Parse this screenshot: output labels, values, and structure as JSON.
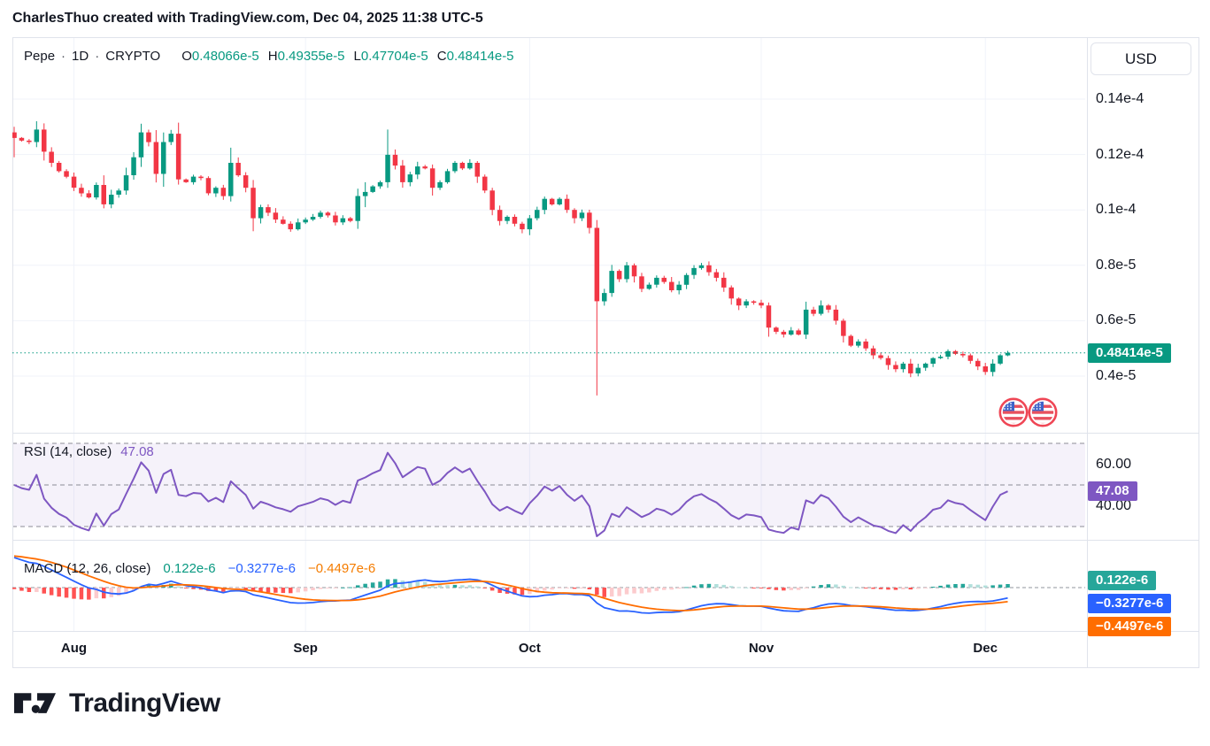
{
  "header": {
    "credit": "CharlesThuo created with TradingView.com, Dec 04, 2025 11:38 UTC-5"
  },
  "legend": {
    "symbol": "Pepe",
    "separator": "·",
    "interval": "1D",
    "market": "CRYPTO",
    "ohlc": [
      {
        "label": "O",
        "value": "0.48066e-5"
      },
      {
        "label": "H",
        "value": "0.49355e-5"
      },
      {
        "label": "L",
        "value": "0.47704e-5"
      },
      {
        "label": "C",
        "value": "0.48414e-5"
      }
    ]
  },
  "price_axis": {
    "currency": "USD",
    "ticks": [
      {
        "label": "0.14e-4",
        "value": 1.4
      },
      {
        "label": "0.12e-4",
        "value": 1.2
      },
      {
        "label": "0.1e-4",
        "value": 1.0
      },
      {
        "label": "0.8e-5",
        "value": 0.8
      },
      {
        "label": "0.6e-5",
        "value": 0.6
      },
      {
        "label": "0.4e-5",
        "value": 0.4
      }
    ],
    "last_price_label": "0.48414e-5",
    "last_price": 0.48414
  },
  "rsi_panel": {
    "title": "RSI",
    "params": "(14, close)",
    "value_label": "47.08",
    "value": 47.08,
    "upper_level": 70,
    "middle_level": 50,
    "lower_level": 30,
    "ticks": [
      {
        "label": "60.00",
        "value": 60
      },
      {
        "label": "40.00",
        "value": 40
      }
    ]
  },
  "macd_panel": {
    "title": "MACD",
    "params": "(12, 26, close)",
    "hist_label": "0.122e-6",
    "macd_label": "−0.3277e-6",
    "signal_label": "−0.4497e-6"
  },
  "footer": {
    "brand": "TradingView"
  },
  "colors": {
    "up": "#089981",
    "down": "#F23645",
    "rsi_line": "#7E57C2",
    "macd_line": "#2962FF",
    "signal_line": "#FF6D00",
    "hist_pos_strong": "#26A69A",
    "hist_pos_weak": "#B2DFDB",
    "hist_neg_strong": "#FF5252",
    "hist_neg_weak": "#FCCBCD",
    "accent": "#089981",
    "text": "#131722",
    "grid": "#F0F3FA",
    "border": "#E0E3EB",
    "level_dash": "#787B86"
  },
  "chart_data": {
    "type": "candlestick",
    "symbol": "Pepe",
    "interval": "1D",
    "market": "CRYPTO",
    "price_unit": "e-5 USD",
    "ylim": [
      0.3,
      1.45
    ],
    "price_gridlines": [
      1.4,
      1.2,
      1.0,
      0.8,
      0.6,
      0.4
    ],
    "open_first": 1.28,
    "closes": [
      1.26,
      1.25,
      1.245,
      1.29,
      1.21,
      1.17,
      1.14,
      1.12,
      1.08,
      1.06,
      1.045,
      1.09,
      1.02,
      1.055,
      1.07,
      1.125,
      1.19,
      1.28,
      1.245,
      1.13,
      1.245,
      1.275,
      1.11,
      1.1,
      1.12,
      1.115,
      1.06,
      1.08,
      1.05,
      1.17,
      1.125,
      1.08,
      0.97,
      1.01,
      0.99,
      0.965,
      0.95,
      0.93,
      0.955,
      0.965,
      0.975,
      0.99,
      0.98,
      0.955,
      0.97,
      0.96,
      1.05,
      1.065,
      1.085,
      1.1,
      1.199,
      1.16,
      1.1,
      1.128,
      1.157,
      1.15,
      1.08,
      1.1,
      1.14,
      1.17,
      1.15,
      1.17,
      1.12,
      1.07,
      1.0,
      0.96,
      0.975,
      0.95,
      0.93,
      0.97,
      1.0,
      1.04,
      1.02,
      1.04,
      1.0,
      0.97,
      0.99,
      0.935,
      0.67,
      0.7,
      0.78,
      0.75,
      0.8,
      0.76,
      0.715,
      0.73,
      0.755,
      0.74,
      0.71,
      0.73,
      0.765,
      0.79,
      0.8,
      0.775,
      0.755,
      0.72,
      0.68,
      0.655,
      0.67,
      0.665,
      0.655,
      0.575,
      0.56,
      0.55,
      0.565,
      0.55,
      0.64,
      0.625,
      0.655,
      0.64,
      0.6,
      0.545,
      0.51,
      0.525,
      0.5,
      0.475,
      0.465,
      0.44,
      0.425,
      0.445,
      0.41,
      0.43,
      0.445,
      0.465,
      0.47,
      0.49,
      0.48,
      0.475,
      0.455,
      0.435,
      0.415,
      0.445,
      0.475,
      0.48414
    ],
    "wick_overrides": {
      "0": {
        "high": 1.3,
        "low": 1.19
      },
      "3": {
        "high": 1.32
      },
      "47": {
        "high": 1.1,
        "low": 1.01
      },
      "50": {
        "high": 1.29
      },
      "78": {
        "low": 0.33
      }
    },
    "last_close": 0.48414,
    "x_months": [
      {
        "label": "Aug",
        "day": 8
      },
      {
        "label": "Sep",
        "day": 39
      },
      {
        "label": "Oct",
        "day": 69
      },
      {
        "label": "Nov",
        "day": 100
      },
      {
        "label": "Dec",
        "day": 130
      }
    ],
    "indicators": {
      "rsi": {
        "period": 14,
        "source": "close",
        "final": 47.08,
        "levels": [
          70,
          50,
          30
        ],
        "axis_ticks": [
          60,
          40
        ]
      },
      "macd": {
        "fast": 12,
        "slow": 26,
        "signal": 9,
        "source": "close",
        "final_hist_e6": 0.122,
        "final_macd_e6": -0.3277,
        "final_signal_e6": -0.4497
      }
    }
  }
}
